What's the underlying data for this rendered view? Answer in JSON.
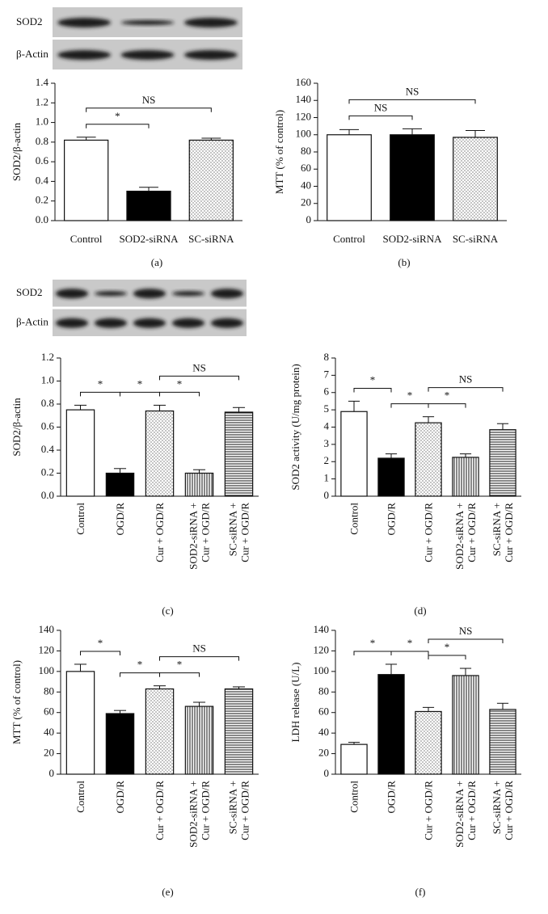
{
  "blots": [
    {
      "rows": [
        "SOD2",
        "β-Actin"
      ]
    },
    {
      "rows": [
        "SOD2",
        "β-Actin"
      ]
    }
  ],
  "chart_data": [
    {
      "type": "bar",
      "panel": "(a)",
      "ylabel": "SOD2/β-actin",
      "categories": [
        [
          "Control"
        ],
        [
          "SOD2-siRNA"
        ],
        [
          "SC-siRNA"
        ]
      ],
      "values": [
        0.82,
        0.3,
        0.82
      ],
      "errors": [
        0.03,
        0.04,
        0.02
      ],
      "fills": [
        "white",
        "black",
        "dots"
      ],
      "ylim": [
        0,
        1.4
      ],
      "yticks": [
        {
          "value": 0,
          "label": "0.0"
        },
        0.2,
        0.4,
        0.6,
        0.8,
        {
          "value": 1,
          "label": "1.0"
        },
        1.2,
        1.4
      ],
      "annotations": [
        {
          "text": "*",
          "between": [
            0,
            1
          ]
        },
        {
          "text": "NS",
          "between": [
            0,
            2
          ]
        }
      ]
    },
    {
      "type": "bar",
      "panel": "(b)",
      "ylabel": "MTT (% of control)",
      "categories": [
        [
          "Control"
        ],
        [
          "SOD2-siRNA"
        ],
        [
          "SC-siRNA"
        ]
      ],
      "values": [
        100,
        100,
        97
      ],
      "errors": [
        6,
        7,
        8
      ],
      "fills": [
        "white",
        "black",
        "dots"
      ],
      "ylim": [
        0,
        160
      ],
      "yticks": [
        0,
        20,
        40,
        60,
        80,
        100,
        120,
        140,
        160
      ],
      "annotations": [
        {
          "text": "NS",
          "between": [
            0,
            1
          ]
        },
        {
          "text": "NS",
          "between": [
            0,
            2
          ]
        }
      ]
    },
    {
      "type": "bar",
      "panel": "(c)",
      "ylabel": "SOD2/β-actin",
      "categories": [
        [
          "Control"
        ],
        [
          "OGD/R"
        ],
        [
          "Cur + OGD/R"
        ],
        [
          "SOD2-siRNA +",
          "Cur + OGD/R"
        ],
        [
          "SC-siRNA +",
          "Cur + OGD/R"
        ]
      ],
      "values": [
        0.75,
        0.2,
        0.74,
        0.2,
        0.73
      ],
      "errors": [
        0.04,
        0.04,
        0.05,
        0.03,
        0.04
      ],
      "fills": [
        "white",
        "black",
        "dots",
        "vlines",
        "hlines"
      ],
      "ylim": [
        0,
        1.2
      ],
      "yticks": [
        {
          "value": 0,
          "label": "0.0"
        },
        0.2,
        0.4,
        0.6,
        0.8,
        {
          "value": 1,
          "label": "1.0"
        },
        1.2
      ],
      "annotations": [
        {
          "text": "*",
          "between": [
            0,
            1
          ]
        },
        {
          "text": "*",
          "between": [
            1,
            2
          ]
        },
        {
          "text": "*",
          "between": [
            2,
            3
          ]
        },
        {
          "text": "NS",
          "between": [
            2,
            4
          ]
        }
      ]
    },
    {
      "type": "bar",
      "panel": "(d)",
      "ylabel": "SOD2 activity (U/mg protein)",
      "categories": [
        [
          "Control"
        ],
        [
          "OGD/R"
        ],
        [
          "Cur + OGD/R"
        ],
        [
          "SOD2-siRNA +",
          "Cur + OGD/R"
        ],
        [
          "SC-siRNA +",
          "Cur + OGD/R"
        ]
      ],
      "values": [
        4.9,
        2.2,
        4.25,
        2.25,
        3.85
      ],
      "errors": [
        0.6,
        0.25,
        0.35,
        0.2,
        0.35
      ],
      "fills": [
        "white",
        "black",
        "dots",
        "vlines",
        "hlines"
      ],
      "ylim": [
        0,
        8
      ],
      "yticks": [
        0,
        1,
        2,
        3,
        4,
        5,
        6,
        7,
        8
      ],
      "annotations": [
        {
          "text": "*",
          "between": [
            0,
            1
          ]
        },
        {
          "text": "*",
          "between": [
            1,
            2
          ]
        },
        {
          "text": "*",
          "between": [
            2,
            3
          ]
        },
        {
          "text": "NS",
          "between": [
            2,
            4
          ]
        }
      ]
    },
    {
      "type": "bar",
      "panel": "(e)",
      "ylabel": "MTT (% of control)",
      "categories": [
        [
          "Control"
        ],
        [
          "OGD/R"
        ],
        [
          "Cur + OGD/R"
        ],
        [
          "SOD2-siRNA +",
          "Cur + OGD/R"
        ],
        [
          "SC-siRNA +",
          "Cur + OGD/R"
        ]
      ],
      "values": [
        100,
        59,
        83,
        66,
        83
      ],
      "errors": [
        7,
        3,
        3,
        4,
        2
      ],
      "fills": [
        "white",
        "black",
        "dots",
        "vlines",
        "hlines"
      ],
      "ylim": [
        0,
        140
      ],
      "yticks": [
        0,
        20,
        40,
        60,
        80,
        100,
        120,
        140
      ],
      "annotations": [
        {
          "text": "*",
          "between": [
            0,
            1
          ]
        },
        {
          "text": "*",
          "between": [
            1,
            2
          ]
        },
        {
          "text": "*",
          "between": [
            2,
            3
          ]
        },
        {
          "text": "NS",
          "between": [
            2,
            4
          ]
        }
      ]
    },
    {
      "type": "bar",
      "panel": "(f)",
      "ylabel": "LDH release (U/L)",
      "categories": [
        [
          "Control"
        ],
        [
          "OGD/R"
        ],
        [
          "Cur + OGD/R"
        ],
        [
          "SOD2-siRNA +",
          "Cur + OGD/R"
        ],
        [
          "SC-siRNA +",
          "Cur + OGD/R"
        ]
      ],
      "values": [
        29,
        97,
        61,
        96,
        63
      ],
      "errors": [
        2,
        10,
        4,
        7,
        6
      ],
      "fills": [
        "white",
        "black",
        "dots",
        "vlines",
        "hlines"
      ],
      "ylim": [
        0,
        140
      ],
      "yticks": [
        0,
        20,
        40,
        60,
        80,
        100,
        120,
        140
      ],
      "annotations": [
        {
          "text": "*",
          "between": [
            0,
            1
          ]
        },
        {
          "text": "*",
          "between": [
            1,
            2
          ]
        },
        {
          "text": "*",
          "between": [
            2,
            3
          ]
        },
        {
          "text": "NS",
          "between": [
            2,
            4
          ]
        }
      ]
    }
  ]
}
